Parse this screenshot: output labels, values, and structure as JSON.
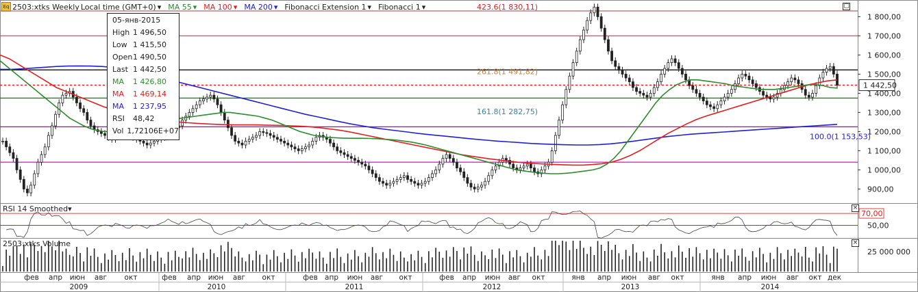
{
  "toolbar": {
    "symbol": "2503:xtks Weekly",
    "timezone": "Local time (GMT+0)",
    "ma55": "MA 55",
    "ma100": "MA 100",
    "ma200": "MA 200",
    "fib_ext": "Fibonacci Extension 1",
    "fib": "Fibonacci 1",
    "colors": {
      "ma55": "#2e8b2e",
      "ma100": "#e02020",
      "ma200": "#2020d0",
      "fib_ext": "#333333",
      "fib": "#333333"
    }
  },
  "tooltip": {
    "date": "05-янв-2015",
    "rows": [
      {
        "k": "High",
        "v": "1 496,50",
        "color": "#222222"
      },
      {
        "k": "Low",
        "v": "1 415,50",
        "color": "#222222"
      },
      {
        "k": "Open",
        "v": "1 490,50",
        "color": "#222222"
      },
      {
        "k": "Last",
        "v": "1 442,50",
        "color": "#222222"
      },
      {
        "k": "MA",
        "v": "1 426,80",
        "color": "#2e8b2e"
      },
      {
        "k": "MA",
        "v": "1 469,14",
        "color": "#e02020"
      },
      {
        "k": "MA",
        "v": "1 237,95",
        "color": "#2020d0"
      },
      {
        "k": "RSI",
        "v": "48,42",
        "color": "#222222"
      },
      {
        "k": "Vol",
        "v": "1,72106E+07",
        "color": "#222222"
      }
    ]
  },
  "rsi_panel": {
    "title": "RSI 14 Smoothed",
    "level_label": "70,00",
    "tick_50": "50,00"
  },
  "volume_panel": {
    "title": "2503:xtks Volume",
    "tick": "25 000 000"
  },
  "last_price_label": "1 442,50",
  "chart_data": {
    "type": "candlestick",
    "title": "2503:xtks Weekly",
    "ylim": [
      830,
      1880
    ],
    "yticks": [
      "900,00",
      "1 000,00",
      "1 100,00",
      "1 200,00",
      "1 300,00",
      "1 400,00",
      "1 500,00",
      "1 600,00",
      "1 700,00",
      "1 800,00"
    ],
    "ytick_values": [
      900,
      1000,
      1100,
      1200,
      1300,
      1400,
      1500,
      1600,
      1700,
      1800
    ],
    "x_months": [
      "фев",
      "апр",
      "июн",
      "авг",
      "окт",
      "фев",
      "апр",
      "июн",
      "авг",
      "окт",
      "фев",
      "апр",
      "июн",
      "авг",
      "окт",
      "фев",
      "апр",
      "июн",
      "авг",
      "окт",
      "янв",
      "апр",
      "июн",
      "авг",
      "окт",
      "янв",
      "апр",
      "июн",
      "авг",
      "окт",
      "дек"
    ],
    "x_years": [
      "2009",
      "2010",
      "2011",
      "2012",
      "2013",
      "2014"
    ],
    "fibonacci_labels": [
      {
        "text": "423.6(1 830,11)",
        "value": 1830.11,
        "color": "#e02020"
      },
      {
        "text": "261.8(1 491,82)",
        "value": 1491.82,
        "color": "#c08040"
      },
      {
        "text": "161.8(1 282,75)",
        "value": 1282.75,
        "color": "#4080a0"
      },
      {
        "text": "100.0(1 153,53)",
        "value": 1153.53,
        "color": "#2020d0"
      }
    ],
    "horizontal_levels": [
      {
        "value": 1830,
        "color": "#c08080"
      },
      {
        "value": 1700,
        "color": "#a07070"
      },
      {
        "value": 1522,
        "color": "#222222"
      },
      {
        "value": 1442.5,
        "color": "#e02020",
        "dashed": true
      },
      {
        "value": 1375,
        "color": "#208020"
      },
      {
        "value": 1225,
        "color": "#a020a0"
      },
      {
        "value": 1040,
        "color": "#e020e0"
      }
    ],
    "close_series": [
      1150,
      1120,
      1090,
      1060,
      1000,
      950,
      900,
      880,
      920,
      980,
      1040,
      1080,
      1120,
      1180,
      1230,
      1290,
      1350,
      1390,
      1400,
      1410,
      1380,
      1350,
      1320,
      1300,
      1260,
      1230,
      1210,
      1200,
      1190,
      1180,
      1170,
      1160,
      1175,
      1190,
      1200,
      1195,
      1180,
      1170,
      1160,
      1150,
      1140,
      1130,
      1140,
      1150,
      1160,
      1170,
      1180,
      1200,
      1210,
      1220,
      1230,
      1260,
      1280,
      1300,
      1320,
      1340,
      1360,
      1370,
      1380,
      1390,
      1370,
      1340,
      1300,
      1260,
      1220,
      1180,
      1150,
      1140,
      1130,
      1150,
      1160,
      1170,
      1180,
      1200,
      1195,
      1190,
      1180,
      1170,
      1160,
      1150,
      1140,
      1130,
      1120,
      1110,
      1100,
      1110,
      1120,
      1130,
      1150,
      1170,
      1180,
      1170,
      1160,
      1140,
      1120,
      1100,
      1090,
      1080,
      1070,
      1060,
      1050,
      1040,
      1030,
      1020,
      1000,
      980,
      960,
      940,
      930,
      920,
      930,
      940,
      950,
      960,
      970,
      950,
      940,
      930,
      920,
      930,
      940,
      960,
      980,
      1000,
      1030,
      1060,
      1080,
      1060,
      1040,
      1010,
      990,
      960,
      930,
      910,
      900,
      910,
      920,
      940,
      970,
      1000,
      1020,
      1040,
      1060,
      1050,
      1030,
      1010,
      1000,
      1010,
      1020,
      1030,
      1010,
      990,
      980,
      1000,
      1020,
      1040,
      1100,
      1180,
      1260,
      1340,
      1420,
      1490,
      1560,
      1620,
      1680,
      1730,
      1780,
      1820,
      1850,
      1800,
      1740,
      1680,
      1620,
      1570,
      1540,
      1520,
      1500,
      1480,
      1460,
      1430,
      1410,
      1400,
      1390,
      1380,
      1400,
      1430,
      1460,
      1500,
      1530,
      1560,
      1580,
      1560,
      1530,
      1500,
      1470,
      1440,
      1420,
      1400,
      1380,
      1360,
      1340,
      1330,
      1320,
      1340,
      1360,
      1380,
      1400,
      1420,
      1450,
      1480,
      1500,
      1490,
      1470,
      1450,
      1430,
      1410,
      1390,
      1380,
      1370,
      1380,
      1400,
      1420,
      1440,
      1460,
      1480,
      1470,
      1450,
      1420,
      1390,
      1380,
      1400,
      1440,
      1480,
      1510,
      1530,
      1540,
      1500,
      1442
    ],
    "ma55": [
      1570,
      1540,
      1510,
      1480,
      1450,
      1420,
      1390,
      1360,
      1330,
      1300,
      1270,
      1250,
      1230,
      1215,
      1205,
      1200,
      1200,
      1200,
      1200,
      1205,
      1215,
      1225,
      1235,
      1245,
      1255,
      1265,
      1270,
      1275,
      1280,
      1285,
      1290,
      1295,
      1300,
      1300,
      1295,
      1290,
      1285,
      1280,
      1270,
      1260,
      1245,
      1230,
      1215,
      1200,
      1190,
      1180,
      1175,
      1170,
      1168,
      1166,
      1165,
      1165,
      1165,
      1164,
      1163,
      1160,
      1158,
      1155,
      1150,
      1145,
      1138,
      1130,
      1120,
      1110,
      1100,
      1090,
      1080,
      1070,
      1060,
      1050,
      1040,
      1030,
      1020,
      1010,
      1000,
      995,
      990,
      985,
      982,
      980,
      980,
      982,
      985,
      990,
      995,
      1000,
      1010,
      1030,
      1060,
      1100,
      1150,
      1200,
      1250,
      1300,
      1350,
      1390,
      1420,
      1445,
      1460,
      1470,
      1470,
      1465,
      1460,
      1455,
      1450,
      1440,
      1435,
      1430,
      1425,
      1420,
      1420,
      1420,
      1425,
      1430,
      1435,
      1440,
      1445,
      1445,
      1440,
      1430,
      1427
    ],
    "ma100": [
      1600,
      1580,
      1550,
      1520,
      1490,
      1460,
      1430,
      1410,
      1390,
      1370,
      1350,
      1330,
      1315,
      1300,
      1290,
      1280,
      1270,
      1262,
      1255,
      1250,
      1246,
      1243,
      1240,
      1238,
      1236,
      1235,
      1235,
      1235,
      1234,
      1233,
      1232,
      1230,
      1228,
      1225,
      1220,
      1214,
      1208,
      1200,
      1190,
      1180,
      1170,
      1160,
      1150,
      1140,
      1130,
      1120,
      1110,
      1100,
      1090,
      1080,
      1072,
      1065,
      1058,
      1052,
      1046,
      1040,
      1036,
      1033,
      1030,
      1028,
      1026,
      1025,
      1025,
      1028,
      1032,
      1040,
      1055,
      1075,
      1100,
      1130,
      1160,
      1190,
      1215,
      1240,
      1262,
      1280,
      1295,
      1310,
      1325,
      1340,
      1355,
      1370,
      1385,
      1400,
      1415,
      1430,
      1445,
      1455,
      1465,
      1470
    ],
    "ma200": [
      1525,
      1525,
      1528,
      1532,
      1536,
      1540,
      1542,
      1543,
      1542,
      1540,
      1535,
      1525,
      1512,
      1500,
      1485,
      1470,
      1455,
      1440,
      1425,
      1410,
      1395,
      1380,
      1365,
      1350,
      1335,
      1320,
      1305,
      1290,
      1278,
      1265,
      1252,
      1240,
      1230,
      1220,
      1212,
      1205,
      1198,
      1190,
      1184,
      1178,
      1172,
      1166,
      1160,
      1155,
      1150,
      1146,
      1142,
      1138,
      1135,
      1133,
      1131,
      1130,
      1130,
      1132,
      1136,
      1142,
      1150,
      1158,
      1166,
      1174,
      1180,
      1186,
      1190,
      1194,
      1198,
      1202,
      1206,
      1210,
      1214,
      1218,
      1222,
      1226,
      1230,
      1234,
      1238
    ],
    "rsi_level": 70,
    "rsi_ylim": [
      30,
      85
    ],
    "volume_tick_value": 25000000
  }
}
